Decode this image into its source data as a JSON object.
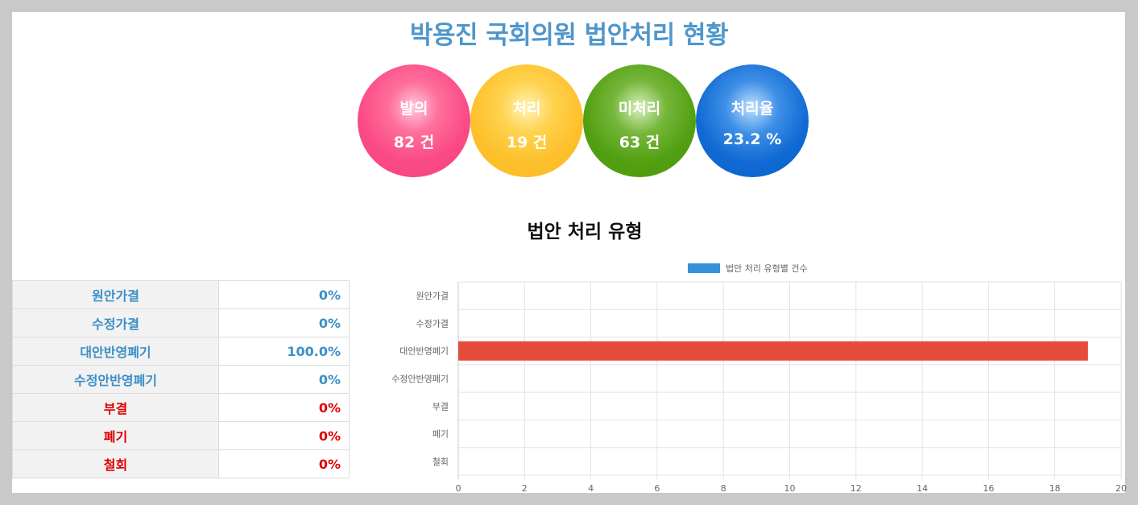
{
  "title": "박용진 국회의원 법안처리 현황",
  "stats": [
    {
      "label": "발의",
      "value": "82 건"
    },
    {
      "label": "처리",
      "value": "19 건"
    },
    {
      "label": "미처리",
      "value": "63 건"
    },
    {
      "label": "처리율",
      "value": "23.2 %"
    }
  ],
  "section_title": "법안 처리 유형",
  "table": {
    "rows": [
      {
        "name": "원안가결",
        "pct": "0%",
        "color": "#3b8fc8"
      },
      {
        "name": "수정가결",
        "pct": "0%",
        "color": "#3b8fc8"
      },
      {
        "name": "대안반영폐기",
        "pct": "100.0%",
        "color": "#3b8fc8"
      },
      {
        "name": "수정안반영폐기",
        "pct": "0%",
        "color": "#3b8fc8"
      },
      {
        "name": "부결",
        "pct": "0%",
        "color": "#e00000"
      },
      {
        "name": "폐기",
        "pct": "0%",
        "color": "#e00000"
      },
      {
        "name": "철회",
        "pct": "0%",
        "color": "#e00000"
      }
    ]
  },
  "chart_data": {
    "type": "bar",
    "orientation": "horizontal",
    "categories": [
      "원안가결",
      "수정가결",
      "대안반영폐기",
      "수정안반영폐기",
      "부결",
      "폐기",
      "철회"
    ],
    "series": [
      {
        "name": "법안 처리 유형별 건수",
        "values": [
          0,
          0,
          19,
          0,
          0,
          0,
          0
        ],
        "color": "#3592d8",
        "bar_color": "#e64c3c"
      }
    ],
    "xlim": [
      0,
      20
    ],
    "xticks": [
      "0",
      "2",
      "4",
      "6",
      "8",
      "10",
      "12",
      "14",
      "16",
      "18",
      "20"
    ],
    "grid": true,
    "legend_position": "top"
  }
}
